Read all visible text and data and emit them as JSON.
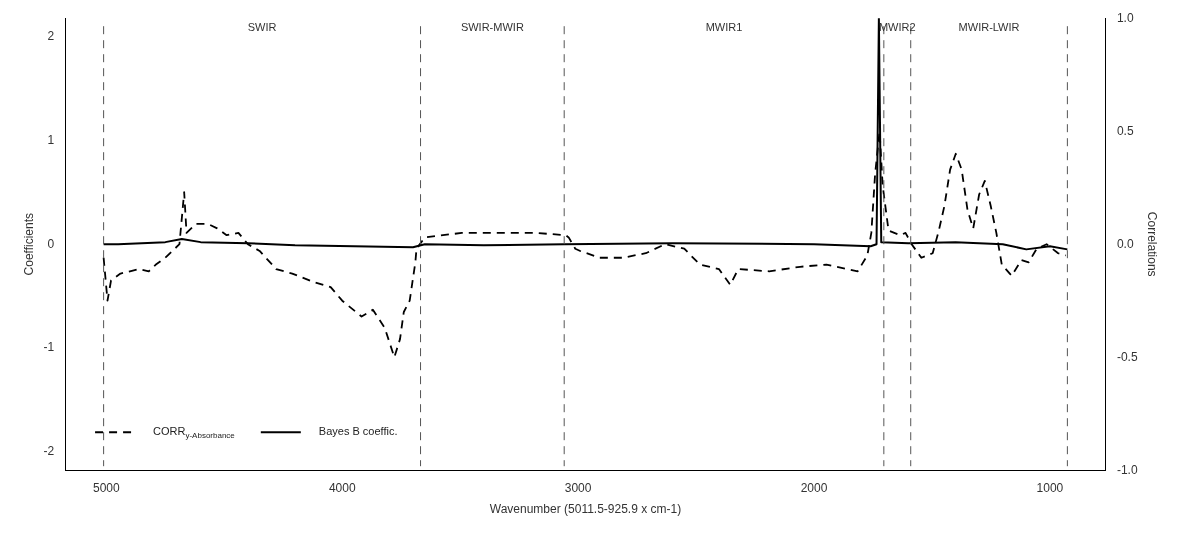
{
  "chart_data": {
    "type": "line",
    "xlabel": "Wavenumber (5011.5-925.9 x cm-1)",
    "ylabel": "Coefficients",
    "y2label": "Correlations",
    "xlim": [
      5174.9,
      762.5
    ],
    "xticks": [
      5000,
      4000,
      3000,
      2000,
      1000
    ],
    "ylim": [
      -2.18,
      2.18
    ],
    "yticks": [
      -2,
      -1,
      0,
      1,
      2
    ],
    "y2lim": [
      -1,
      1
    ],
    "y2ticks": [
      {
        "value": -1,
        "label": "-1.0"
      },
      {
        "value": -0.5,
        "label": "-0.5"
      },
      {
        "value": 0,
        "label": "0.0"
      },
      {
        "value": 0.5,
        "label": "0.5"
      },
      {
        "value": 1,
        "label": "1.0"
      }
    ],
    "grid": false,
    "legend": "bottom left",
    "marker": "none",
    "series": [
      {
        "name": "CORR$_{y-Absorbance}$",
        "color": "#000000",
        "axis": "y2",
        "line_style": "dashed",
        "x": [
          5011.5,
          4995,
          4980,
          4940,
          4900,
          4860,
          4820,
          4790,
          4750,
          4720,
          4690,
          4670,
          4660,
          4620,
          4570,
          4530,
          4490,
          4440,
          4400,
          4350,
          4280,
          4212,
          4114,
          4049,
          4000,
          3918,
          3870,
          3820,
          3779,
          3755,
          3739,
          3714,
          3690,
          3685,
          3650,
          3493,
          3183,
          3053,
          3040,
          3012,
          2991,
          2909,
          2811,
          2713,
          2631,
          2550,
          2484,
          2403,
          2355,
          2321,
          2190,
          2059,
          1947,
          1815,
          1774,
          1757,
          1741,
          1722,
          1709,
          1684,
          1635,
          1612,
          1586,
          1545,
          1497,
          1471,
          1447,
          1423,
          1399,
          1374,
          1349,
          1325,
          1300,
          1276,
          1251,
          1227,
          1204,
          1162,
          1121,
          1090,
          1056,
          1014,
          965,
          933
        ],
        "values": [
          -0.06,
          -0.25,
          -0.16,
          -0.13,
          -0.12,
          -0.11,
          -0.12,
          -0.09,
          -0.06,
          -0.03,
          0.0,
          0.23,
          0.05,
          0.09,
          0.09,
          0.07,
          0.04,
          0.05,
          0.0,
          -0.03,
          -0.11,
          -0.13,
          -0.17,
          -0.19,
          -0.25,
          -0.32,
          -0.29,
          -0.37,
          -0.5,
          -0.42,
          -0.3,
          -0.25,
          -0.08,
          -0.02,
          0.03,
          0.05,
          0.05,
          0.04,
          0.03,
          -0.02,
          -0.03,
          -0.06,
          -0.06,
          -0.04,
          0.0,
          -0.02,
          -0.09,
          -0.11,
          -0.18,
          -0.11,
          -0.12,
          -0.1,
          -0.09,
          -0.12,
          -0.05,
          0.05,
          0.31,
          0.5,
          0.26,
          0.06,
          0.04,
          0.05,
          0.0,
          -0.06,
          -0.04,
          0.06,
          0.17,
          0.33,
          0.4,
          0.33,
          0.15,
          0.07,
          0.22,
          0.28,
          0.17,
          0.05,
          -0.09,
          -0.14,
          -0.07,
          -0.08,
          -0.02,
          0.0,
          -0.04,
          -0.05
        ]
      },
      {
        "name": "Bayes B coeffic.",
        "color": "#000000",
        "axis": "y",
        "line_style": "solid",
        "x": [
          5011.5,
          4950,
          4750,
          4680,
          4600,
          4400,
          4200,
          3700,
          3650,
          3400,
          3059,
          2600,
          2000,
          1760,
          1735,
          1725,
          1715,
          1600,
          1400,
          1200,
          1100,
          1000,
          925.9
        ],
        "values": [
          0.0,
          0.0,
          0.02,
          0.05,
          0.02,
          0.01,
          -0.01,
          -0.03,
          0.0,
          -0.01,
          0.0,
          0.01,
          0.0,
          -0.02,
          0.0,
          2.18,
          0.02,
          0.01,
          0.02,
          0.0,
          -0.05,
          -0.02,
          -0.05
        ]
      }
    ],
    "ref_lines": [
      {
        "axis": "x",
        "value": 5011.5,
        "color": "#555555",
        "line_style": "dashed"
      },
      {
        "axis": "x",
        "value": 3668,
        "color": "#555555",
        "line_style": "dashed"
      },
      {
        "axis": "x",
        "value": 3059,
        "color": "#555555",
        "line_style": "dashed"
      },
      {
        "axis": "x",
        "value": 1704,
        "color": "#555555",
        "line_style": "dashed"
      },
      {
        "axis": "x",
        "value": 1590,
        "color": "#555555",
        "line_style": "dashed"
      },
      {
        "axis": "x",
        "value": 925.9,
        "color": "#555555",
        "line_style": "dashed"
      }
    ],
    "annotations": [
      "SWIR",
      "SWIR-MWIR",
      "MWIR1",
      "MWIR2",
      "MWIR-LWIR"
    ]
  }
}
